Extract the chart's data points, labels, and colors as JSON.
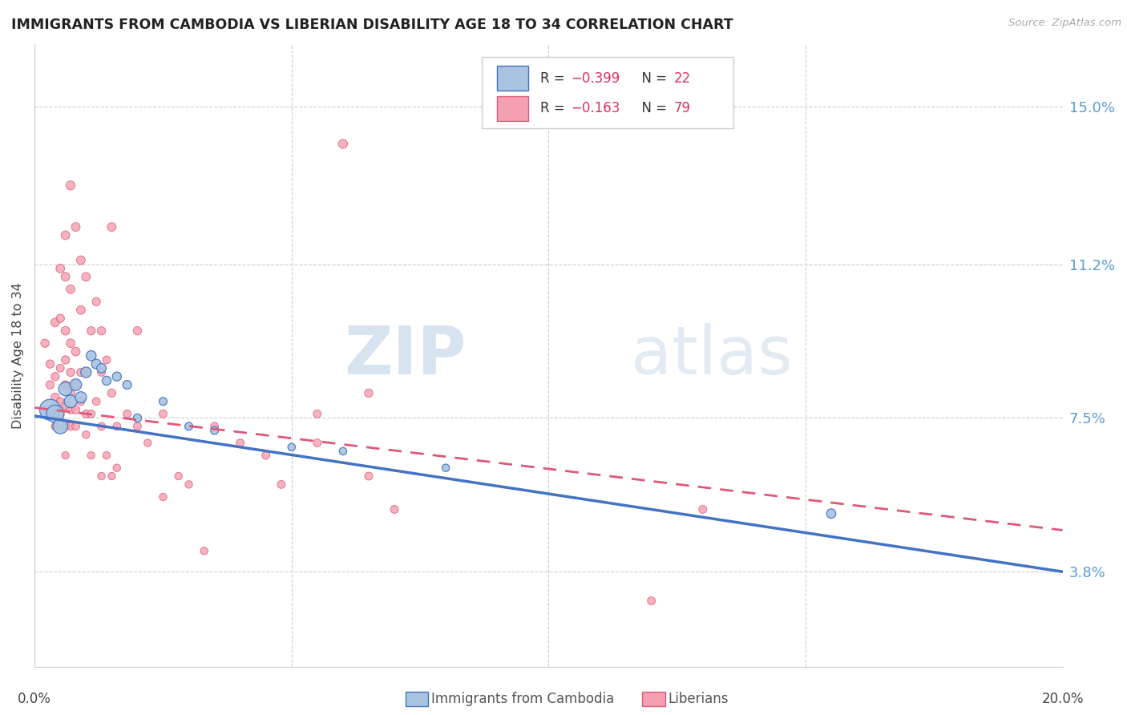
{
  "title": "IMMIGRANTS FROM CAMBODIA VS LIBERIAN DISABILITY AGE 18 TO 34 CORRELATION CHART",
  "source": "Source: ZipAtlas.com",
  "ylabel": "Disability Age 18 to 34",
  "ytick_labels": [
    "15.0%",
    "11.2%",
    "7.5%",
    "3.8%"
  ],
  "ytick_values": [
    0.15,
    0.112,
    0.075,
    0.038
  ],
  "xlim": [
    0.0,
    0.2
  ],
  "ylim": [
    0.015,
    0.165
  ],
  "color_cambodia": "#a8c4e0",
  "color_liberia": "#f4a0b0",
  "color_line_cambodia": "#4472c4",
  "color_line_liberia": "#e05878",
  "watermark_zip": "ZIP",
  "watermark_atlas": "atlas",
  "cam_line_x0": 0.0,
  "cam_line_y0": 0.0755,
  "cam_line_x1": 0.2,
  "cam_line_y1": 0.038,
  "lib_line_x0": 0.0,
  "lib_line_y0": 0.0775,
  "lib_line_x1": 0.2,
  "lib_line_y1": 0.048,
  "cambodia_points": [
    [
      0.003,
      0.077
    ],
    [
      0.004,
      0.076
    ],
    [
      0.005,
      0.073
    ],
    [
      0.006,
      0.082
    ],
    [
      0.007,
      0.079
    ],
    [
      0.008,
      0.083
    ],
    [
      0.009,
      0.08
    ],
    [
      0.01,
      0.086
    ],
    [
      0.011,
      0.09
    ],
    [
      0.012,
      0.088
    ],
    [
      0.013,
      0.087
    ],
    [
      0.014,
      0.084
    ],
    [
      0.016,
      0.085
    ],
    [
      0.018,
      0.083
    ],
    [
      0.02,
      0.075
    ],
    [
      0.025,
      0.079
    ],
    [
      0.03,
      0.073
    ],
    [
      0.035,
      0.072
    ],
    [
      0.05,
      0.068
    ],
    [
      0.06,
      0.067
    ],
    [
      0.08,
      0.063
    ],
    [
      0.155,
      0.052
    ]
  ],
  "cambodia_sizes": [
    350,
    250,
    180,
    150,
    130,
    110,
    100,
    90,
    80,
    75,
    70,
    65,
    65,
    60,
    55,
    50,
    50,
    50,
    45,
    45,
    45,
    70
  ],
  "liberia_points": [
    [
      0.002,
      0.093
    ],
    [
      0.003,
      0.088
    ],
    [
      0.003,
      0.083
    ],
    [
      0.004,
      0.098
    ],
    [
      0.004,
      0.085
    ],
    [
      0.004,
      0.08
    ],
    [
      0.004,
      0.076
    ],
    [
      0.004,
      0.073
    ],
    [
      0.005,
      0.111
    ],
    [
      0.005,
      0.099
    ],
    [
      0.005,
      0.087
    ],
    [
      0.005,
      0.079
    ],
    [
      0.005,
      0.076
    ],
    [
      0.006,
      0.119
    ],
    [
      0.006,
      0.109
    ],
    [
      0.006,
      0.096
    ],
    [
      0.006,
      0.089
    ],
    [
      0.006,
      0.083
    ],
    [
      0.006,
      0.078
    ],
    [
      0.006,
      0.073
    ],
    [
      0.006,
      0.066
    ],
    [
      0.007,
      0.131
    ],
    [
      0.007,
      0.106
    ],
    [
      0.007,
      0.093
    ],
    [
      0.007,
      0.086
    ],
    [
      0.007,
      0.081
    ],
    [
      0.007,
      0.077
    ],
    [
      0.007,
      0.073
    ],
    [
      0.008,
      0.121
    ],
    [
      0.008,
      0.091
    ],
    [
      0.008,
      0.083
    ],
    [
      0.008,
      0.077
    ],
    [
      0.008,
      0.073
    ],
    [
      0.009,
      0.113
    ],
    [
      0.009,
      0.101
    ],
    [
      0.009,
      0.086
    ],
    [
      0.009,
      0.079
    ],
    [
      0.01,
      0.109
    ],
    [
      0.01,
      0.086
    ],
    [
      0.01,
      0.076
    ],
    [
      0.01,
      0.071
    ],
    [
      0.011,
      0.096
    ],
    [
      0.011,
      0.076
    ],
    [
      0.011,
      0.066
    ],
    [
      0.012,
      0.103
    ],
    [
      0.012,
      0.079
    ],
    [
      0.013,
      0.096
    ],
    [
      0.013,
      0.086
    ],
    [
      0.013,
      0.073
    ],
    [
      0.013,
      0.061
    ],
    [
      0.014,
      0.089
    ],
    [
      0.014,
      0.066
    ],
    [
      0.015,
      0.121
    ],
    [
      0.015,
      0.081
    ],
    [
      0.015,
      0.061
    ],
    [
      0.016,
      0.073
    ],
    [
      0.016,
      0.063
    ],
    [
      0.018,
      0.076
    ],
    [
      0.02,
      0.096
    ],
    [
      0.02,
      0.073
    ],
    [
      0.022,
      0.069
    ],
    [
      0.025,
      0.076
    ],
    [
      0.025,
      0.056
    ],
    [
      0.028,
      0.061
    ],
    [
      0.03,
      0.059
    ],
    [
      0.033,
      0.043
    ],
    [
      0.035,
      0.073
    ],
    [
      0.04,
      0.069
    ],
    [
      0.045,
      0.066
    ],
    [
      0.048,
      0.059
    ],
    [
      0.055,
      0.076
    ],
    [
      0.055,
      0.069
    ],
    [
      0.06,
      0.141
    ],
    [
      0.065,
      0.081
    ],
    [
      0.065,
      0.061
    ],
    [
      0.07,
      0.053
    ],
    [
      0.12,
      0.031
    ],
    [
      0.13,
      0.053
    ]
  ],
  "liberia_sizes": [
    55,
    55,
    55,
    60,
    55,
    55,
    50,
    50,
    60,
    55,
    50,
    50,
    50,
    60,
    60,
    60,
    55,
    55,
    50,
    50,
    45,
    65,
    60,
    60,
    55,
    55,
    55,
    50,
    60,
    60,
    55,
    55,
    50,
    60,
    60,
    55,
    50,
    60,
    55,
    50,
    45,
    55,
    50,
    45,
    55,
    50,
    55,
    50,
    50,
    45,
    50,
    45,
    60,
    55,
    45,
    50,
    45,
    50,
    55,
    50,
    45,
    50,
    45,
    45,
    45,
    45,
    50,
    50,
    50,
    50,
    50,
    50,
    65,
    55,
    50,
    50,
    50,
    50
  ]
}
